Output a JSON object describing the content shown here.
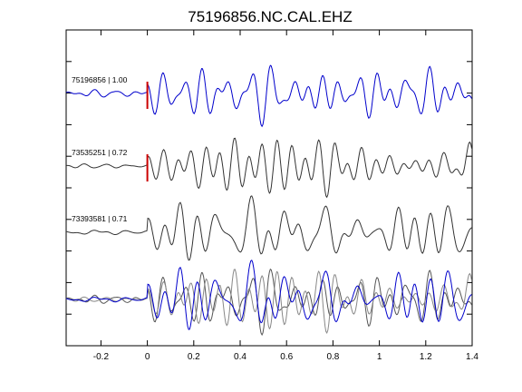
{
  "chart_data": {
    "type": "line",
    "title": "75196856.NC.CAL.EHZ",
    "xlabel": "",
    "ylabel": "",
    "xlim": [
      -0.35,
      1.4
    ],
    "x_ticks": [
      -0.2,
      0,
      0.2,
      0.4,
      0.6,
      0.8,
      1,
      1.2,
      1.4
    ],
    "x_tick_labels": [
      "-0.2",
      "0",
      "0.2",
      "0.4",
      "0.6",
      "0.8",
      "1",
      "1.2",
      "1.4"
    ],
    "y_ticks_count": 9,
    "grid": false,
    "pick_marker": {
      "x": 0,
      "color": "#cc0000"
    },
    "traces": [
      {
        "label": "75196856 | 1.00",
        "color": "#0000cc",
        "has_pick": true,
        "overlay": false
      },
      {
        "label": "73535251 | 0.72",
        "color": "#333333",
        "has_pick": true,
        "overlay": false
      },
      {
        "label": "73393581 | 0.71",
        "color": "#333333",
        "has_pick": false,
        "overlay": false
      }
    ],
    "overlay_traces": [
      {
        "color": "#555555"
      },
      {
        "color": "#888888"
      },
      {
        "color": "#0000cc"
      }
    ]
  }
}
